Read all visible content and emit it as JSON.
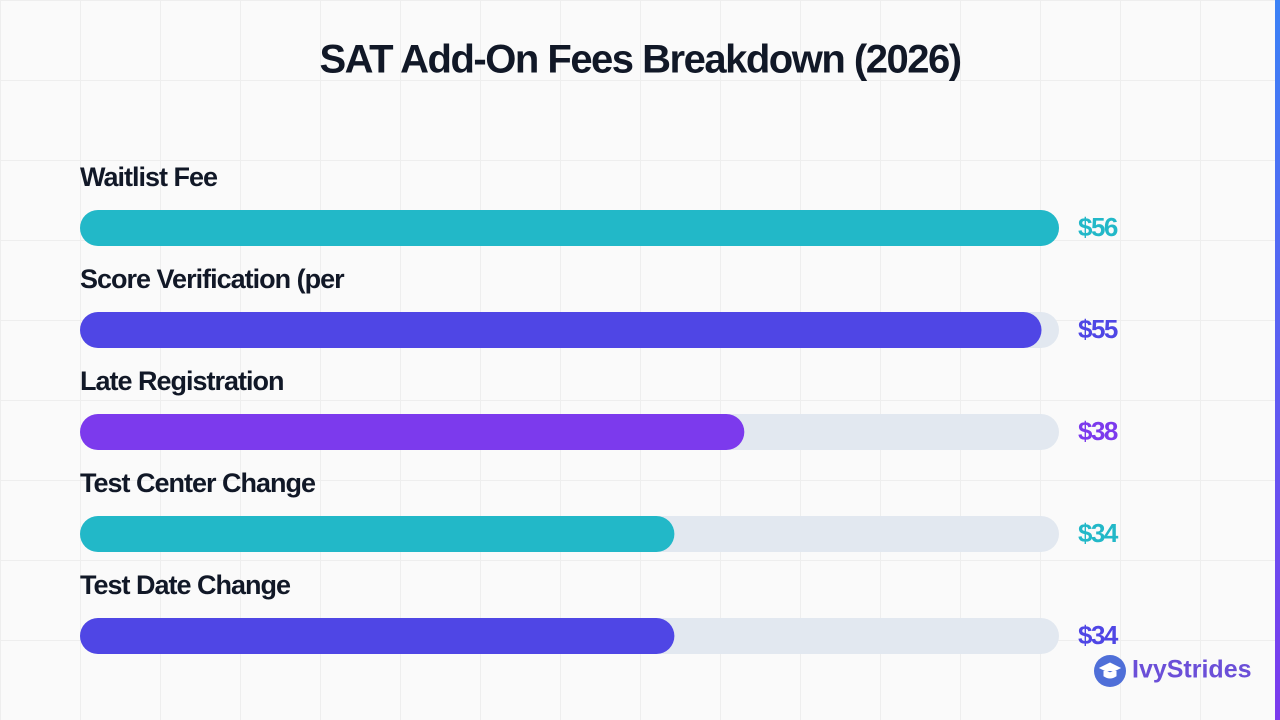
{
  "chart_data": {
    "type": "bar",
    "orientation": "horizontal",
    "title": "SAT Add-On Fees Breakdown (2026)",
    "categories": [
      "Waitlist Fee",
      "Score Verification (per",
      "Late Registration",
      "Test Center Change",
      "Test Date Change"
    ],
    "values": [
      56,
      55,
      38,
      34,
      34
    ],
    "value_labels": [
      "$56",
      "$55",
      "$38",
      "$34",
      "$34"
    ],
    "colors": [
      "#22b8c8",
      "#4f46e5",
      "#7c3aed",
      "#22b8c8",
      "#4f46e5"
    ]
  },
  "brand": "IvyStrides"
}
